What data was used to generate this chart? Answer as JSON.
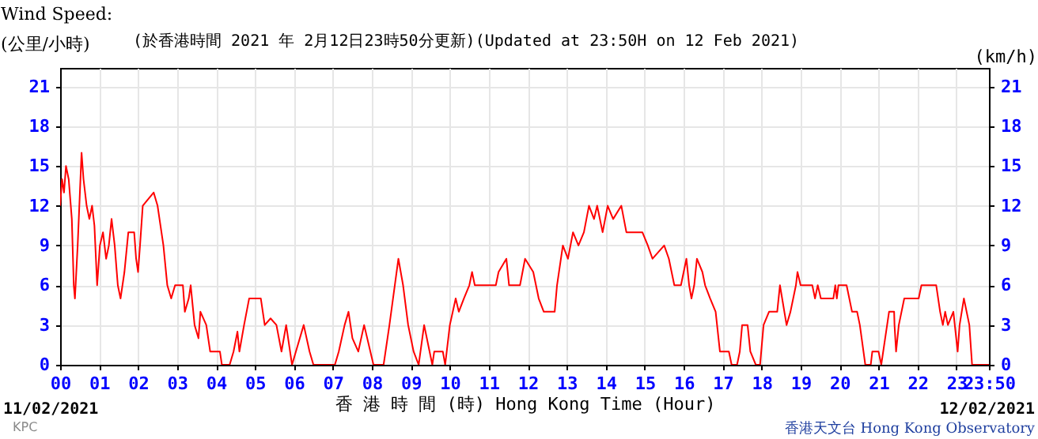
{
  "chart_data": {
    "type": "line",
    "title": "(於香港時間 2021 年 2月12日23時50分更新)(Updated at 23:50H on 12 Feb 2021)",
    "ylabel": "Wind Speed:\n(公里/小時)",
    "y2label": "(km/h)",
    "xlabel": "香 港 時 間 (時) Hong Kong Time (Hour)",
    "annotations": [
      "11/02/2021",
      "12/02/2021",
      "KPC",
      "香港天文台 Hong Kong Observatory"
    ],
    "x": [
      0,
      0.05,
      0.1,
      0.15,
      0.22,
      0.3,
      0.35,
      0.38,
      0.45,
      0.5,
      0.55,
      0.6,
      0.68,
      0.75,
      0.82,
      0.88,
      0.95,
      1.02,
      1.1,
      1.18,
      1.25,
      1.32,
      1.4,
      1.48,
      1.55,
      1.65,
      1.75,
      1.9,
      1.95,
      2.0,
      2.05,
      2.12,
      2.4,
      2.5,
      2.65,
      2.75,
      2.85,
      2.95,
      3.15,
      3.2,
      3.3,
      3.35,
      3.45,
      3.55,
      3.6,
      3.75,
      3.85,
      4.1,
      4.15,
      4.35,
      4.45,
      4.55,
      4.6,
      4.72,
      4.85,
      5.15,
      5.25,
      5.4,
      5.55,
      5.68,
      5.8,
      5.9,
      5.95,
      6.05,
      6.25,
      6.4,
      6.5,
      7.05,
      7.15,
      7.3,
      7.4,
      7.5,
      7.65,
      7.8,
      8.04,
      8.3,
      8.45,
      8.68,
      8.8,
      8.93,
      9.07,
      9.2,
      9.34,
      9.48,
      9.55,
      9.6,
      9.82,
      9.88,
      10.0,
      10.15,
      10.23,
      10.36,
      10.5,
      10.57,
      10.64,
      11.18,
      11.25,
      11.45,
      11.52,
      11.8,
      11.93,
      12.14,
      12.28,
      12.41,
      12.69,
      12.75,
      12.9,
      13.03,
      13.16,
      13.3,
      13.44,
      13.57,
      13.7,
      13.78,
      13.92,
      14.05,
      14.19,
      14.4,
      14.53,
      14.94,
      15.08,
      15.2,
      15.5,
      15.62,
      15.76,
      15.93,
      16.07,
      16.14,
      16.2,
      16.27,
      16.34,
      16.48,
      16.55,
      16.68,
      16.82,
      16.93,
      17.16,
      17.23,
      17.37,
      17.44,
      17.5,
      17.64,
      17.71,
      17.85,
      17.96,
      18.05,
      18.19,
      18.4,
      18.47,
      18.64,
      18.74,
      18.88,
      18.92,
      19.0,
      19.3,
      19.37,
      19.44,
      19.52,
      19.84,
      19.89,
      19.93,
      19.97,
      20.18,
      20.32,
      20.45,
      20.52,
      20.66,
      20.8,
      20.84,
      21.0,
      21.07,
      21.12,
      21.27,
      21.4,
      21.41,
      21.45,
      21.52,
      21.66,
      22.03,
      22.1,
      22.48,
      22.58,
      22.65,
      22.71,
      22.78,
      22.92,
      23.03,
      23.08,
      23.19,
      23.33,
      23.4,
      23.833
    ],
    "values": [
      12,
      14,
      13,
      15,
      14,
      11,
      6,
      5,
      9,
      12.5,
      16,
      14,
      12,
      11,
      12,
      10.5,
      6,
      9,
      10,
      8,
      9,
      11,
      9,
      6,
      5,
      7,
      10,
      10,
      8,
      7,
      9,
      12,
      13,
      12,
      9,
      6,
      5,
      6,
      6,
      4,
      5,
      6,
      3,
      2,
      4,
      3,
      1,
      1,
      0,
      0,
      1,
      2.5,
      1,
      3,
      5,
      5,
      3,
      3.5,
      3,
      1,
      3,
      1,
      0,
      1,
      3,
      1,
      0,
      0,
      1,
      3,
      4,
      2,
      1,
      3,
      0,
      0,
      3,
      8,
      6,
      3,
      1,
      0,
      3,
      1,
      0,
      1,
      1,
      0,
      3,
      5,
      4,
      5,
      6,
      7,
      6,
      6,
      7,
      8,
      6,
      6,
      8,
      7,
      5,
      4,
      4,
      6,
      9,
      8,
      10,
      9,
      10,
      12,
      11,
      12,
      10,
      12,
      11,
      12,
      10,
      10,
      9,
      8,
      9,
      8,
      6,
      6,
      8,
      6,
      5,
      6,
      8,
      7,
      6,
      5,
      4,
      1,
      1,
      0,
      0,
      1,
      3,
      3,
      1,
      0,
      0,
      3,
      4,
      4,
      6,
      3,
      4,
      6,
      7,
      6,
      6,
      5,
      6,
      5,
      5,
      6,
      5,
      6,
      6,
      4,
      4,
      3,
      0,
      0,
      1,
      1,
      0,
      1,
      4,
      4,
      3,
      1,
      3,
      5,
      5,
      6,
      6,
      4,
      3,
      4,
      3,
      4,
      1,
      3,
      5,
      3,
      0,
      0
    ],
    "color": "#ff0000",
    "xlim": [
      0,
      23.833
    ],
    "xticks": [
      {
        "value": 0,
        "label": "00"
      },
      {
        "value": 1,
        "label": "01"
      },
      {
        "value": 2,
        "label": "02"
      },
      {
        "value": 3,
        "label": "03"
      },
      {
        "value": 4,
        "label": "04"
      },
      {
        "value": 5,
        "label": "05"
      },
      {
        "value": 6,
        "label": "06"
      },
      {
        "value": 7,
        "label": "07"
      },
      {
        "value": 8,
        "label": "08"
      },
      {
        "value": 9,
        "label": "09"
      },
      10,
      11,
      12,
      13,
      14,
      15,
      16,
      17,
      18,
      19,
      20,
      21,
      22,
      23,
      {
        "value": 23.833,
        "label": "23:50"
      }
    ],
    "ylim": [
      0,
      22.4
    ],
    "yticks": [
      0,
      3,
      6,
      9,
      12,
      15,
      18,
      21
    ],
    "y2lim": [
      0,
      22.4
    ],
    "y2ticks": [
      0,
      3,
      6,
      9,
      12,
      15,
      18,
      21
    ],
    "grid": true
  }
}
